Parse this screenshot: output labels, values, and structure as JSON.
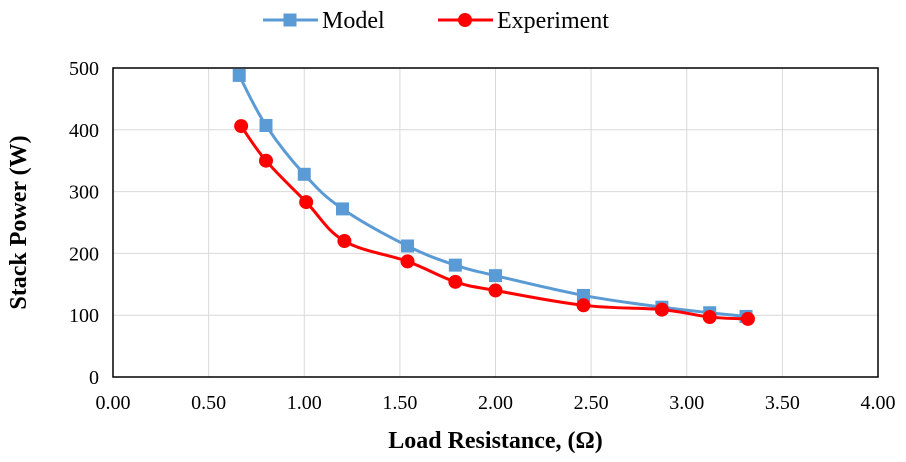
{
  "chart_data": {
    "type": "scatter",
    "xlabel": "Load Resistance, (Ω)",
    "ylabel": "Stack Power (W)",
    "xlim": [
      0,
      4
    ],
    "ylim": [
      0,
      500
    ],
    "x_ticks": [
      "0.00",
      "0.50",
      "1.00",
      "1.50",
      "2.00",
      "2.50",
      "3.00",
      "3.50",
      "4.00"
    ],
    "y_ticks": [
      "0",
      "100",
      "200",
      "300",
      "400",
      "500"
    ],
    "grid": "vertical-and-horizontal",
    "legend_position": "top",
    "smooth_lines": true,
    "series": [
      {
        "name": "Model",
        "color": "#5B9BD5",
        "marker": "square",
        "points": [
          [
            0.66,
            488
          ],
          [
            0.8,
            407
          ],
          [
            1.0,
            328
          ],
          [
            1.2,
            272
          ],
          [
            1.54,
            212
          ],
          [
            1.79,
            181
          ],
          [
            2.0,
            164
          ],
          [
            2.46,
            132
          ],
          [
            2.87,
            113
          ],
          [
            3.12,
            104
          ],
          [
            3.31,
            98
          ]
        ]
      },
      {
        "name": "Experiment",
        "color": "#FF0000",
        "marker": "circle",
        "points": [
          [
            0.67,
            406
          ],
          [
            0.8,
            350
          ],
          [
            1.01,
            283
          ],
          [
            1.21,
            220
          ],
          [
            1.54,
            187
          ],
          [
            1.79,
            154
          ],
          [
            2.0,
            140
          ],
          [
            2.46,
            116
          ],
          [
            2.87,
            109
          ],
          [
            3.12,
            97
          ],
          [
            3.32,
            94
          ]
        ]
      }
    ]
  }
}
